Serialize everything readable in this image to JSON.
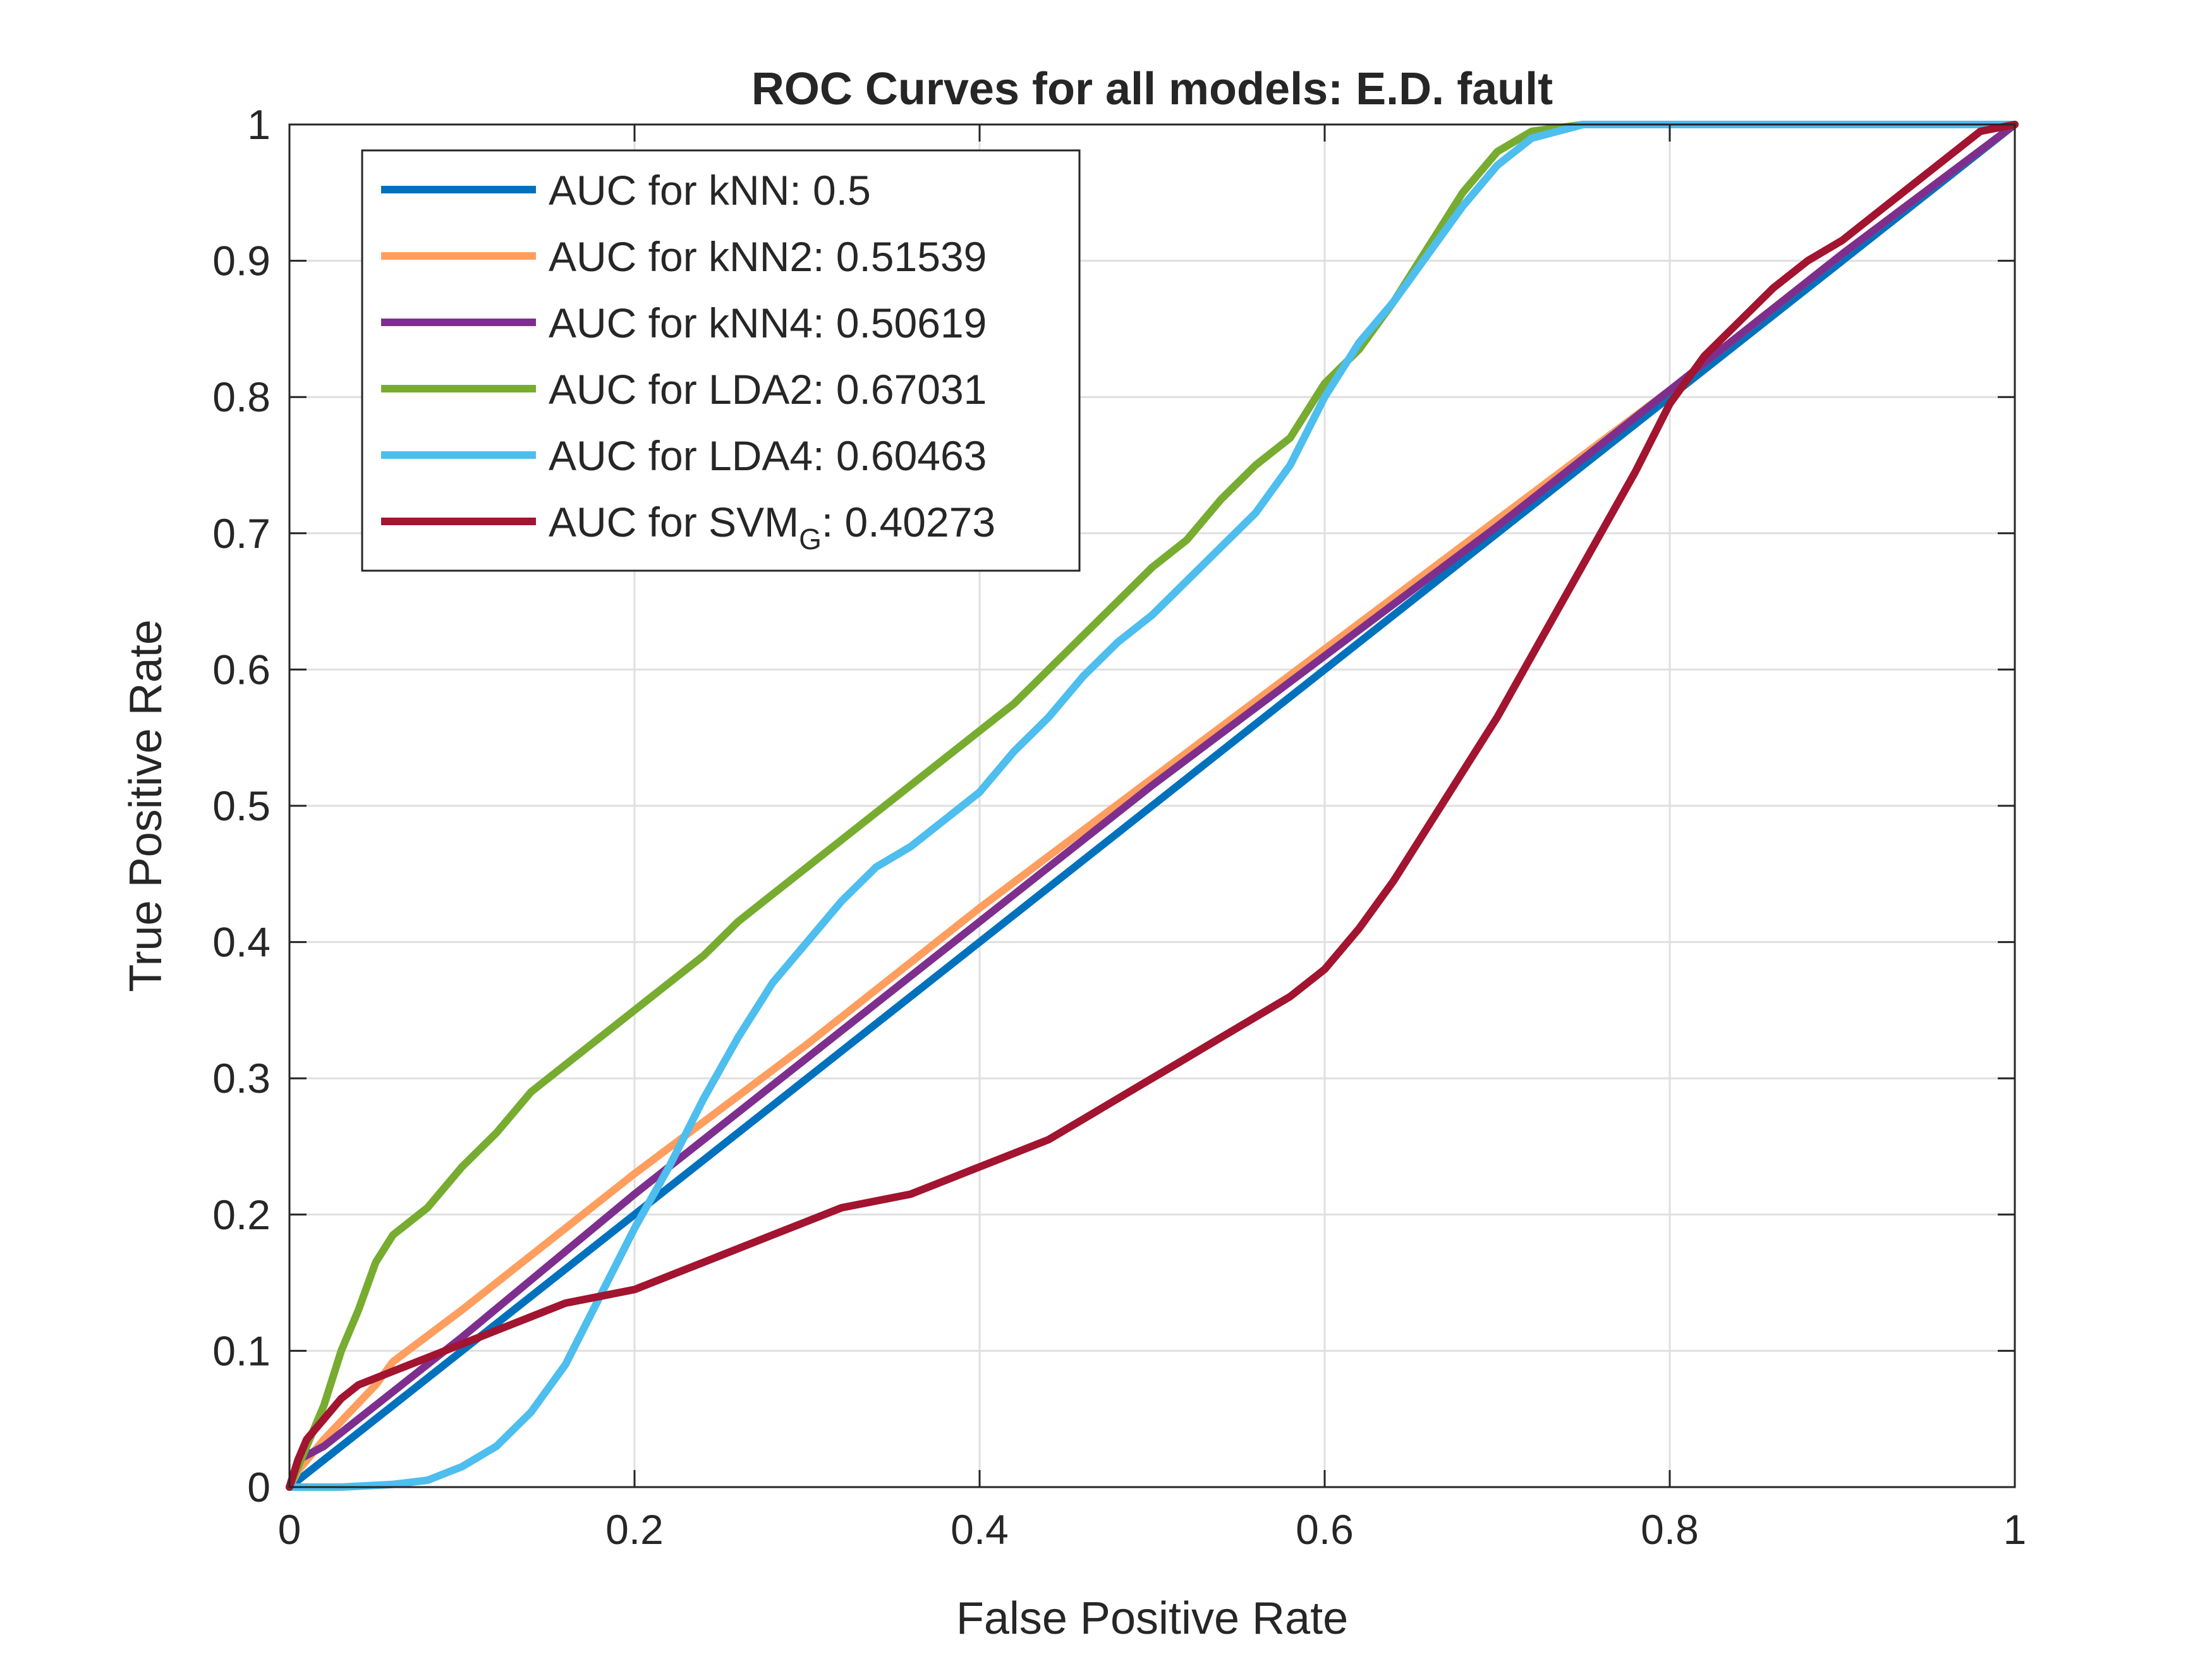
{
  "chart_data": {
    "type": "line",
    "title": "ROC Curves for all models: E.D. fault",
    "xlabel": "False Positive Rate",
    "ylabel": "True Positive Rate",
    "xlim": [
      0,
      1
    ],
    "ylim": [
      0,
      1
    ],
    "grid": true,
    "legend_position": "top-left",
    "x_ticks": [
      0,
      0.2,
      0.4,
      0.6,
      0.8,
      1
    ],
    "x_tick_labels": [
      "0",
      "0.2",
      "0.4",
      "0.6",
      "0.8",
      "1"
    ],
    "y_ticks": [
      0,
      0.1,
      0.2,
      0.3,
      0.4,
      0.5,
      0.6,
      0.7,
      0.8,
      0.9,
      1
    ],
    "y_tick_labels": [
      "0",
      "0.1",
      "0.2",
      "0.3",
      "0.4",
      "0.5",
      "0.6",
      "0.7",
      "0.8",
      "0.9",
      "1"
    ],
    "series": [
      {
        "legend_prefix": "AUC for kNN",
        "legend_sub": "",
        "legend_suffix": ": 0.5",
        "color": "#0072BD",
        "points": [
          [
            0,
            0
          ],
          [
            1,
            1
          ]
        ]
      },
      {
        "legend_prefix": "AUC for kNN2",
        "legend_sub": "",
        "legend_suffix": ": 0.51539",
        "color": "#FF9E5E",
        "points": [
          [
            0,
            0
          ],
          [
            0.005,
            0.012
          ],
          [
            0.02,
            0.035
          ],
          [
            0.05,
            0.075
          ],
          [
            0.06,
            0.092
          ],
          [
            0.1,
            0.13
          ],
          [
            0.2,
            0.23
          ],
          [
            0.3,
            0.325
          ],
          [
            0.4,
            0.425
          ],
          [
            0.5,
            0.52
          ],
          [
            0.6,
            0.615
          ],
          [
            0.7,
            0.71
          ],
          [
            0.8,
            0.805
          ],
          [
            0.9,
            0.905
          ],
          [
            1,
            1
          ]
        ]
      },
      {
        "legend_prefix": "AUC for kNN4",
        "legend_sub": "",
        "legend_suffix": ": 0.50619",
        "color": "#7E2F8E",
        "points": [
          [
            0,
            0
          ],
          [
            0.005,
            0.02
          ],
          [
            0.02,
            0.03
          ],
          [
            0.1,
            0.11
          ],
          [
            0.2,
            0.215
          ],
          [
            0.3,
            0.315
          ],
          [
            0.4,
            0.415
          ],
          [
            0.5,
            0.515
          ],
          [
            0.6,
            0.61
          ],
          [
            0.7,
            0.705
          ],
          [
            0.8,
            0.805
          ],
          [
            0.9,
            0.905
          ],
          [
            1,
            1
          ]
        ]
      },
      {
        "legend_prefix": "AUC for LDA2",
        "legend_sub": "",
        "legend_suffix": ": 0.67031",
        "color": "#77AC30",
        "points": [
          [
            0,
            0
          ],
          [
            0.01,
            0.03
          ],
          [
            0.02,
            0.06
          ],
          [
            0.03,
            0.1
          ],
          [
            0.04,
            0.13
          ],
          [
            0.05,
            0.165
          ],
          [
            0.06,
            0.185
          ],
          [
            0.08,
            0.205
          ],
          [
            0.1,
            0.235
          ],
          [
            0.12,
            0.26
          ],
          [
            0.14,
            0.29
          ],
          [
            0.16,
            0.31
          ],
          [
            0.18,
            0.33
          ],
          [
            0.2,
            0.35
          ],
          [
            0.22,
            0.37
          ],
          [
            0.24,
            0.39
          ],
          [
            0.26,
            0.415
          ],
          [
            0.28,
            0.435
          ],
          [
            0.3,
            0.455
          ],
          [
            0.32,
            0.475
          ],
          [
            0.34,
            0.495
          ],
          [
            0.36,
            0.515
          ],
          [
            0.38,
            0.535
          ],
          [
            0.4,
            0.555
          ],
          [
            0.42,
            0.575
          ],
          [
            0.44,
            0.6
          ],
          [
            0.46,
            0.625
          ],
          [
            0.48,
            0.65
          ],
          [
            0.5,
            0.675
          ],
          [
            0.52,
            0.695
          ],
          [
            0.54,
            0.725
          ],
          [
            0.56,
            0.75
          ],
          [
            0.58,
            0.77
          ],
          [
            0.6,
            0.81
          ],
          [
            0.62,
            0.835
          ],
          [
            0.64,
            0.87
          ],
          [
            0.66,
            0.91
          ],
          [
            0.68,
            0.95
          ],
          [
            0.7,
            0.98
          ],
          [
            0.72,
            0.995
          ],
          [
            0.75,
            1
          ],
          [
            1,
            1
          ]
        ]
      },
      {
        "legend_prefix": "AUC for LDA4",
        "legend_sub": "",
        "legend_suffix": ": 0.60463",
        "color": "#4DBEEE",
        "points": [
          [
            0,
            0
          ],
          [
            0.03,
            0
          ],
          [
            0.06,
            0.002
          ],
          [
            0.08,
            0.005
          ],
          [
            0.1,
            0.015
          ],
          [
            0.12,
            0.03
          ],
          [
            0.14,
            0.055
          ],
          [
            0.16,
            0.09
          ],
          [
            0.18,
            0.14
          ],
          [
            0.2,
            0.19
          ],
          [
            0.22,
            0.235
          ],
          [
            0.24,
            0.285
          ],
          [
            0.26,
            0.33
          ],
          [
            0.28,
            0.37
          ],
          [
            0.3,
            0.4
          ],
          [
            0.32,
            0.43
          ],
          [
            0.34,
            0.455
          ],
          [
            0.36,
            0.47
          ],
          [
            0.38,
            0.49
          ],
          [
            0.4,
            0.51
          ],
          [
            0.42,
            0.54
          ],
          [
            0.44,
            0.565
          ],
          [
            0.46,
            0.595
          ],
          [
            0.48,
            0.62
          ],
          [
            0.5,
            0.64
          ],
          [
            0.52,
            0.665
          ],
          [
            0.54,
            0.69
          ],
          [
            0.56,
            0.715
          ],
          [
            0.58,
            0.75
          ],
          [
            0.6,
            0.8
          ],
          [
            0.62,
            0.84
          ],
          [
            0.64,
            0.87
          ],
          [
            0.66,
            0.905
          ],
          [
            0.68,
            0.94
          ],
          [
            0.7,
            0.97
          ],
          [
            0.72,
            0.99
          ],
          [
            0.75,
            1
          ],
          [
            1,
            1
          ]
        ]
      },
      {
        "legend_prefix": "AUC for SVM",
        "legend_sub": "G",
        "legend_suffix": ": 0.40273",
        "color": "#A2142F",
        "points": [
          [
            0,
            0
          ],
          [
            0.005,
            0.02
          ],
          [
            0.01,
            0.035
          ],
          [
            0.02,
            0.05
          ],
          [
            0.03,
            0.065
          ],
          [
            0.04,
            0.075
          ],
          [
            0.06,
            0.085
          ],
          [
            0.08,
            0.095
          ],
          [
            0.1,
            0.105
          ],
          [
            0.12,
            0.115
          ],
          [
            0.14,
            0.125
          ],
          [
            0.16,
            0.135
          ],
          [
            0.18,
            0.14
          ],
          [
            0.2,
            0.145
          ],
          [
            0.22,
            0.155
          ],
          [
            0.24,
            0.165
          ],
          [
            0.26,
            0.175
          ],
          [
            0.28,
            0.185
          ],
          [
            0.3,
            0.195
          ],
          [
            0.32,
            0.205
          ],
          [
            0.34,
            0.21
          ],
          [
            0.36,
            0.215
          ],
          [
            0.38,
            0.225
          ],
          [
            0.4,
            0.235
          ],
          [
            0.42,
            0.245
          ],
          [
            0.44,
            0.255
          ],
          [
            0.46,
            0.27
          ],
          [
            0.48,
            0.285
          ],
          [
            0.5,
            0.3
          ],
          [
            0.52,
            0.315
          ],
          [
            0.54,
            0.33
          ],
          [
            0.56,
            0.345
          ],
          [
            0.58,
            0.36
          ],
          [
            0.6,
            0.38
          ],
          [
            0.62,
            0.41
          ],
          [
            0.64,
            0.445
          ],
          [
            0.66,
            0.485
          ],
          [
            0.68,
            0.525
          ],
          [
            0.7,
            0.565
          ],
          [
            0.72,
            0.61
          ],
          [
            0.74,
            0.655
          ],
          [
            0.76,
            0.7
          ],
          [
            0.78,
            0.745
          ],
          [
            0.8,
            0.795
          ],
          [
            0.82,
            0.83
          ],
          [
            0.84,
            0.855
          ],
          [
            0.86,
            0.88
          ],
          [
            0.88,
            0.9
          ],
          [
            0.9,
            0.915
          ],
          [
            0.92,
            0.935
          ],
          [
            0.94,
            0.955
          ],
          [
            0.96,
            0.975
          ],
          [
            0.98,
            0.995
          ],
          [
            1,
            1
          ]
        ]
      }
    ]
  }
}
